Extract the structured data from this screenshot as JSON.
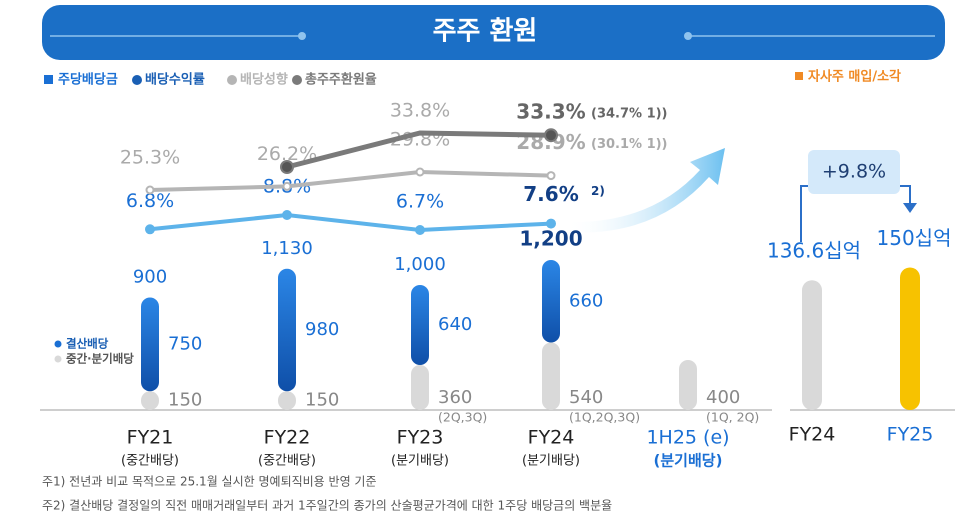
{
  "header": {
    "title": "주주 환원"
  },
  "chart_data": [
    {
      "type": "stacked-bar-line",
      "bar_legend": "주당배당금",
      "bar_color": "#1a6fd4",
      "categories": [
        "FY21",
        "FY22",
        "FY23",
        "FY24",
        "1H25 (e)"
      ],
      "category_notes": [
        "(중간배당)",
        "(중간배당)",
        "(분기배당)",
        "(분기배당)",
        "(분기배당)"
      ],
      "series": [
        {
          "name": "중간·분기배당",
          "color": "#d9d9d9",
          "values": [
            150,
            150,
            360,
            540,
            400
          ]
        },
        {
          "name": "결산배당",
          "color": "#1a6fd4",
          "values": [
            750,
            980,
            640,
            660,
            null
          ]
        }
      ],
      "segment_notes": [
        null,
        null,
        "(2Q,3Q)",
        "(1Q,2Q,3Q)",
        "(1Q, 2Q)"
      ],
      "totals": {
        "values": [
          900,
          1130,
          1000,
          1200,
          null
        ],
        "value_labels": [
          "900",
          "1,130",
          "1,000",
          "1,200",
          null
        ]
      },
      "lines": [
        {
          "name": "배당수익률",
          "color": "#5db3ea",
          "values": [
            6.8,
            8.8,
            6.7,
            7.6,
            null
          ],
          "value_labels": [
            "6.8%",
            "8.8%",
            "6.7%",
            "7.6%",
            null
          ],
          "notes": [
            null,
            null,
            null,
            "2)",
            null
          ]
        },
        {
          "name": "배당성향",
          "color": "#b5b5b5",
          "values": [
            25.3,
            26.2,
            29.8,
            28.9,
            null
          ],
          "value_labels": [
            "25.3%",
            "26.2%",
            "29.8%",
            "28.9%",
            null
          ],
          "notes": [
            null,
            null,
            null,
            "(30.1% 1))",
            null
          ]
        },
        {
          "name": "총주주환원율",
          "color": "#7a7a7a",
          "values": [
            null,
            26.2,
            33.8,
            33.3,
            null
          ],
          "value_labels": [
            null,
            null,
            "33.8%",
            "33.3%",
            null
          ],
          "notes": [
            null,
            null,
            null,
            "(34.7% 1))",
            null
          ]
        }
      ]
    },
    {
      "type": "bar",
      "title": "자사주 매입/소각",
      "title_color": "#f08a24",
      "categories": [
        "FY24",
        "FY25"
      ],
      "values": [
        136.6,
        150
      ],
      "value_labels": [
        "136.6십억",
        "150십억"
      ],
      "colors": [
        "#d9d9d9",
        "#f7c200"
      ],
      "change_label": "+9.8%"
    }
  ],
  "footnotes": [
    "주1) 전년과 비교 목적으로 25.1월 실시한 명예퇴직비용 반영 기준",
    "주2) 결산배당 결정일의 직전 매매거래일부터 과거 1주일간의 종가의 산술평균가격에 대한 1주당 배당금의 백분율"
  ]
}
